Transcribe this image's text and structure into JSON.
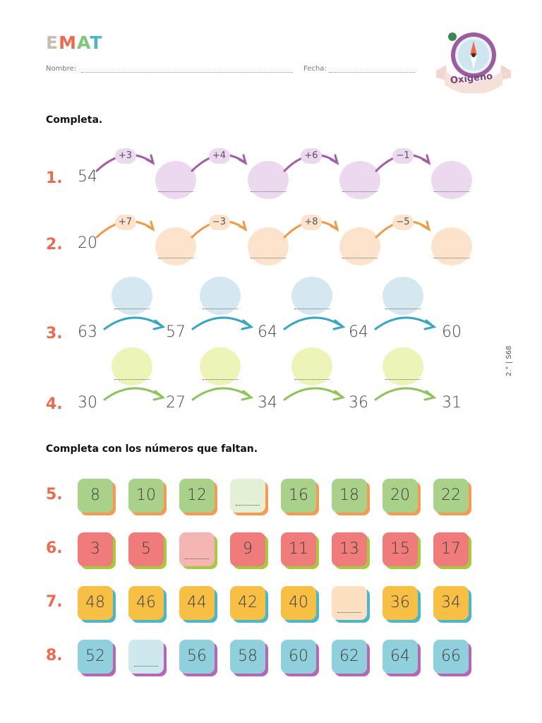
{
  "header": {
    "logo": [
      "E",
      "M",
      "A",
      "T"
    ],
    "logo_colors": [
      "#c8bfae",
      "#ee6a4e",
      "#7cc87a",
      "#4ab7c9"
    ],
    "nombre_label": "Nombre:",
    "fecha_label": "Fecha:",
    "badge_text": "Oxígeno",
    "side_code": "2.° | S68"
  },
  "section1": {
    "instruction": "Completa.",
    "rows": [
      {
        "label": "1.",
        "start": "54",
        "ops": [
          "+3",
          "+4",
          "+6",
          "−1"
        ],
        "color": "#a35ca8",
        "fill": "#ecd9ef"
      },
      {
        "label": "2.",
        "start": "20",
        "ops": [
          "+7",
          "−3",
          "+8",
          "−5"
        ],
        "color": "#f09a4a",
        "fill": "#fde3cc"
      }
    ],
    "rows_b": [
      {
        "label": "3.",
        "values": [
          "63",
          "57",
          "64",
          "64",
          "60"
        ],
        "color": "#3aa5c3",
        "fill": "#d5e8f1"
      },
      {
        "label": "4.",
        "values": [
          "30",
          "27",
          "34",
          "36",
          "31"
        ],
        "color": "#8fc45b",
        "fill": "#eef3b7"
      }
    ]
  },
  "section2": {
    "instruction": "Completa con los números que faltan.",
    "rows": [
      {
        "label": "5.",
        "face": "#a9d18a",
        "shadow": "#f39a55",
        "blank": "#e3f0d5",
        "values": [
          "8",
          "10",
          "12",
          "",
          "16",
          "18",
          "20",
          "22"
        ]
      },
      {
        "label": "6.",
        "face": "#ef7b7b",
        "shadow": "#a8c83e",
        "blank": "#f5b5b3",
        "values": [
          "3",
          "5",
          "",
          "9",
          "11",
          "13",
          "15",
          "17"
        ]
      },
      {
        "label": "7.",
        "face": "#f8bf45",
        "shadow": "#4cb6c9",
        "blank": "#fde0c2",
        "values": [
          "48",
          "46",
          "44",
          "42",
          "40",
          "",
          "36",
          "34"
        ]
      },
      {
        "label": "8.",
        "face": "#8fd0dc",
        "shadow": "#b468b3",
        "blank": "#cfe8ee",
        "values": [
          "52",
          "",
          "56",
          "58",
          "60",
          "62",
          "64",
          "66"
        ]
      }
    ]
  }
}
